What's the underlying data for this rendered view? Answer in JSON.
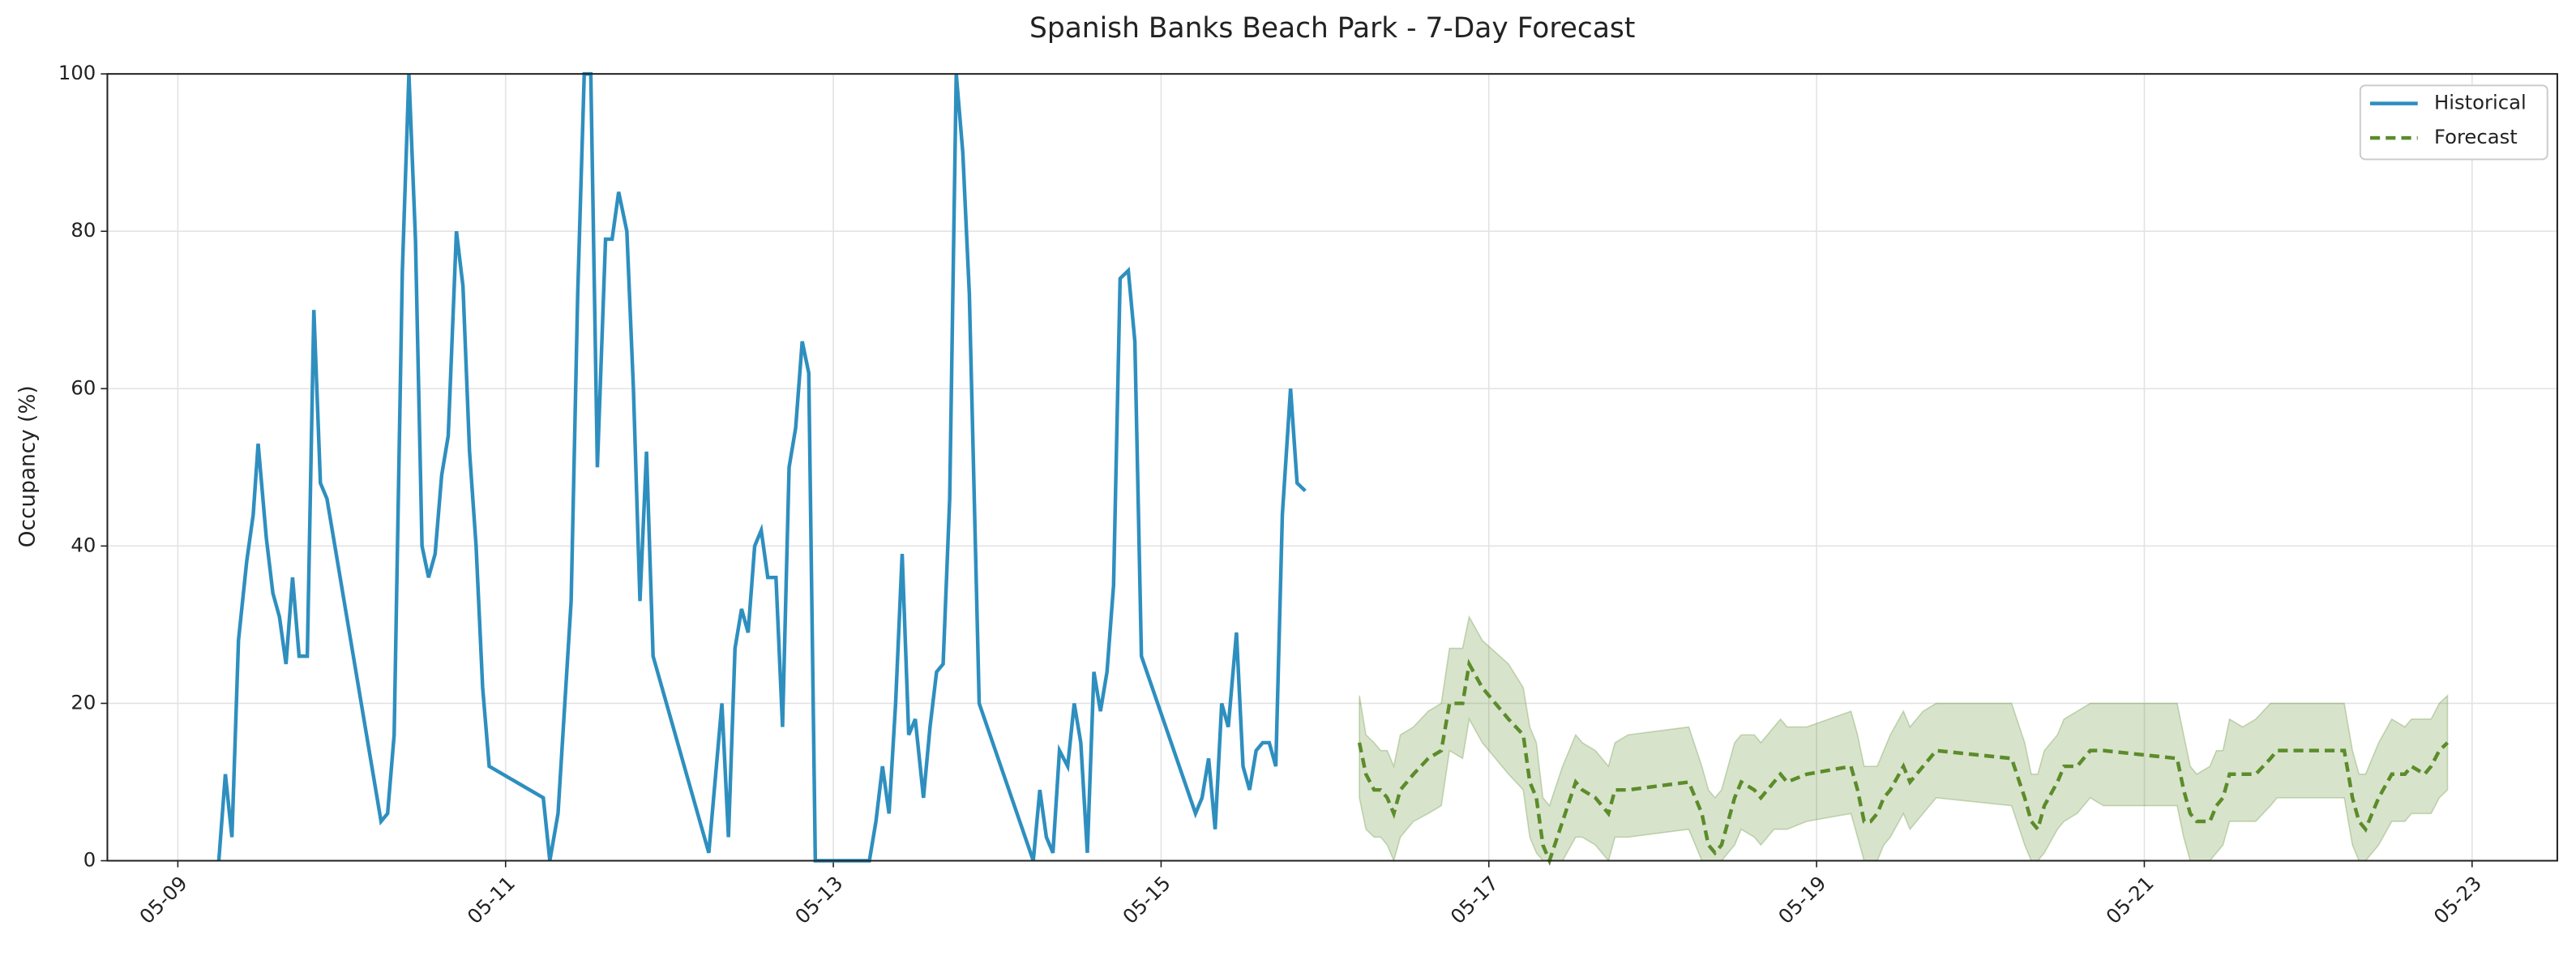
{
  "chart_data": {
    "type": "line",
    "title": "Spanish Banks Beach Park - 7-Day Forecast",
    "y_label": "Occupancy (%)",
    "xlim": [
      8.57,
      23.52
    ],
    "ylim": [
      0,
      100
    ],
    "xticks": [
      {
        "value": 9,
        "label": "05-09"
      },
      {
        "value": 11,
        "label": "05-11"
      },
      {
        "value": 13,
        "label": "05-13"
      },
      {
        "value": 15,
        "label": "05-15"
      },
      {
        "value": 17,
        "label": "05-17"
      },
      {
        "value": 19,
        "label": "05-19"
      },
      {
        "value": 21,
        "label": "05-21"
      },
      {
        "value": 23,
        "label": "05-23"
      }
    ],
    "yticks": [
      0,
      20,
      40,
      60,
      80,
      100
    ],
    "grid": true,
    "legend": "upper right",
    "series": [
      {
        "name": "Historical",
        "color": "#2e8fbf",
        "style": "solid",
        "x": [
          9.25,
          9.29,
          9.33,
          9.37,
          9.42,
          9.46,
          9.49,
          9.54,
          9.58,
          9.62,
          9.66,
          9.7,
          9.74,
          9.79,
          9.83,
          9.87,
          9.91,
          10.24,
          10.28,
          10.32,
          10.37,
          10.41,
          10.45,
          10.49,
          10.53,
          10.57,
          10.61,
          10.65,
          10.7,
          10.74,
          10.78,
          10.82,
          10.86,
          10.9,
          11.23,
          11.27,
          11.32,
          11.4,
          11.44,
          11.48,
          11.52,
          11.56,
          11.61,
          11.65,
          11.69,
          11.74,
          11.78,
          11.82,
          11.86,
          11.9,
          12.24,
          12.32,
          12.36,
          12.4,
          12.44,
          12.48,
          12.52,
          12.56,
          12.6,
          12.65,
          12.69,
          12.73,
          12.77,
          12.81,
          12.85,
          12.89,
          13.22,
          13.26,
          13.3,
          13.34,
          13.38,
          13.42,
          13.46,
          13.5,
          13.55,
          13.59,
          13.63,
          13.67,
          13.71,
          13.75,
          13.79,
          13.83,
          13.89,
          14.22,
          14.26,
          14.3,
          14.34,
          14.38,
          14.43,
          14.47,
          14.51,
          14.55,
          14.59,
          14.63,
          14.67,
          14.71,
          14.75,
          14.8,
          14.84,
          14.88,
          15.21,
          15.25,
          15.29,
          15.33,
          15.37,
          15.41,
          15.46,
          15.5,
          15.54,
          15.58,
          15.62,
          15.66,
          15.7,
          15.74,
          15.79,
          15.83,
          15.88
        ],
        "values": [
          0,
          11,
          3,
          28,
          38,
          44,
          53,
          41,
          34,
          31,
          25,
          36,
          26,
          26,
          70,
          48,
          46,
          5,
          6,
          16,
          75,
          100,
          79,
          40,
          36,
          39,
          49,
          54,
          80,
          73,
          52,
          40,
          22,
          12,
          8,
          0,
          6,
          33,
          72,
          100,
          100,
          50,
          79,
          79,
          85,
          80,
          60,
          33,
          52,
          26,
          1,
          20,
          3,
          27,
          32,
          29,
          40,
          42,
          36,
          36,
          17,
          50,
          55,
          66,
          62,
          0,
          0,
          5,
          12,
          6,
          20,
          39,
          16,
          18,
          8,
          17,
          24,
          25,
          46,
          100,
          90,
          72,
          20,
          0,
          9,
          3,
          1,
          14,
          12,
          20,
          15,
          1,
          24,
          19,
          24,
          35,
          74,
          75,
          66,
          26,
          6,
          8,
          13,
          4,
          20,
          17,
          29,
          12,
          9,
          14,
          15,
          15,
          12,
          44,
          60,
          48,
          47
        ]
      },
      {
        "name": "Forecast",
        "color": "#5b8c2a",
        "style": "dashed",
        "x": [
          16.21,
          16.25,
          16.3,
          16.34,
          16.38,
          16.42,
          16.46,
          16.54,
          16.63,
          16.71,
          16.76,
          16.84,
          16.88,
          16.96,
          17.12,
          17.21,
          17.25,
          17.29,
          17.33,
          17.37,
          17.45,
          17.53,
          17.57,
          17.65,
          17.73,
          17.77,
          17.85,
          18.22,
          18.3,
          18.34,
          18.38,
          18.42,
          18.5,
          18.54,
          18.62,
          18.66,
          18.74,
          18.78,
          18.82,
          18.94,
          19.21,
          19.25,
          19.29,
          19.33,
          19.37,
          19.41,
          19.45,
          19.53,
          19.57,
          19.65,
          19.73,
          20.19,
          20.27,
          20.31,
          20.35,
          20.39,
          20.47,
          20.51,
          20.59,
          20.67,
          20.75,
          21.2,
          21.24,
          21.28,
          21.32,
          21.4,
          21.44,
          21.48,
          21.52,
          21.6,
          21.68,
          21.77,
          21.81,
          22.22,
          22.27,
          22.31,
          22.35,
          22.43,
          22.51,
          22.59,
          22.63,
          22.71,
          22.75,
          22.8,
          22.85
        ],
        "values": [
          15,
          11,
          9,
          9,
          8,
          6,
          9,
          11,
          13,
          14,
          20,
          20,
          25,
          22,
          18,
          16,
          10,
          8,
          2,
          0,
          5,
          10,
          9,
          8,
          6,
          9,
          9,
          10,
          6,
          2,
          1,
          2,
          8,
          10,
          9,
          8,
          10,
          11,
          10,
          11,
          12,
          9,
          5,
          5,
          6,
          8,
          9,
          12,
          10,
          12,
          14,
          13,
          8,
          5,
          4,
          7,
          10,
          12,
          12,
          14,
          14,
          13,
          9,
          6,
          5,
          5,
          7,
          8,
          11,
          11,
          11,
          13,
          14,
          14,
          8,
          5,
          4,
          8,
          11,
          11,
          12,
          11,
          12,
          14,
          15
        ],
        "lower": [
          8,
          4,
          3,
          3,
          2,
          0,
          3,
          5,
          6,
          7,
          14,
          13,
          18,
          15,
          11,
          9,
          3,
          1,
          0,
          0,
          0,
          3,
          3,
          2,
          0,
          3,
          3,
          4,
          0,
          0,
          0,
          0,
          2,
          4,
          3,
          2,
          4,
          4,
          4,
          5,
          6,
          3,
          0,
          0,
          0,
          2,
          3,
          6,
          4,
          6,
          8,
          7,
          2,
          0,
          0,
          1,
          4,
          5,
          6,
          8,
          7,
          7,
          3,
          0,
          0,
          0,
          1,
          2,
          5,
          5,
          5,
          7,
          8,
          8,
          2,
          0,
          0,
          2,
          5,
          5,
          6,
          6,
          6,
          8,
          9
        ],
        "upper": [
          21,
          16,
          15,
          14,
          14,
          12,
          16,
          17,
          19,
          20,
          27,
          27,
          31,
          28,
          25,
          22,
          17,
          15,
          8,
          7,
          12,
          16,
          15,
          14,
          12,
          15,
          16,
          17,
          12,
          9,
          8,
          9,
          15,
          16,
          16,
          15,
          17,
          18,
          17,
          17,
          19,
          16,
          12,
          12,
          12,
          14,
          16,
          19,
          17,
          19,
          20,
          20,
          15,
          11,
          11,
          14,
          16,
          18,
          19,
          20,
          20,
          20,
          16,
          12,
          11,
          12,
          14,
          14,
          18,
          17,
          18,
          20,
          20,
          20,
          14,
          11,
          11,
          15,
          18,
          17,
          18,
          18,
          18,
          20,
          21
        ]
      }
    ]
  }
}
